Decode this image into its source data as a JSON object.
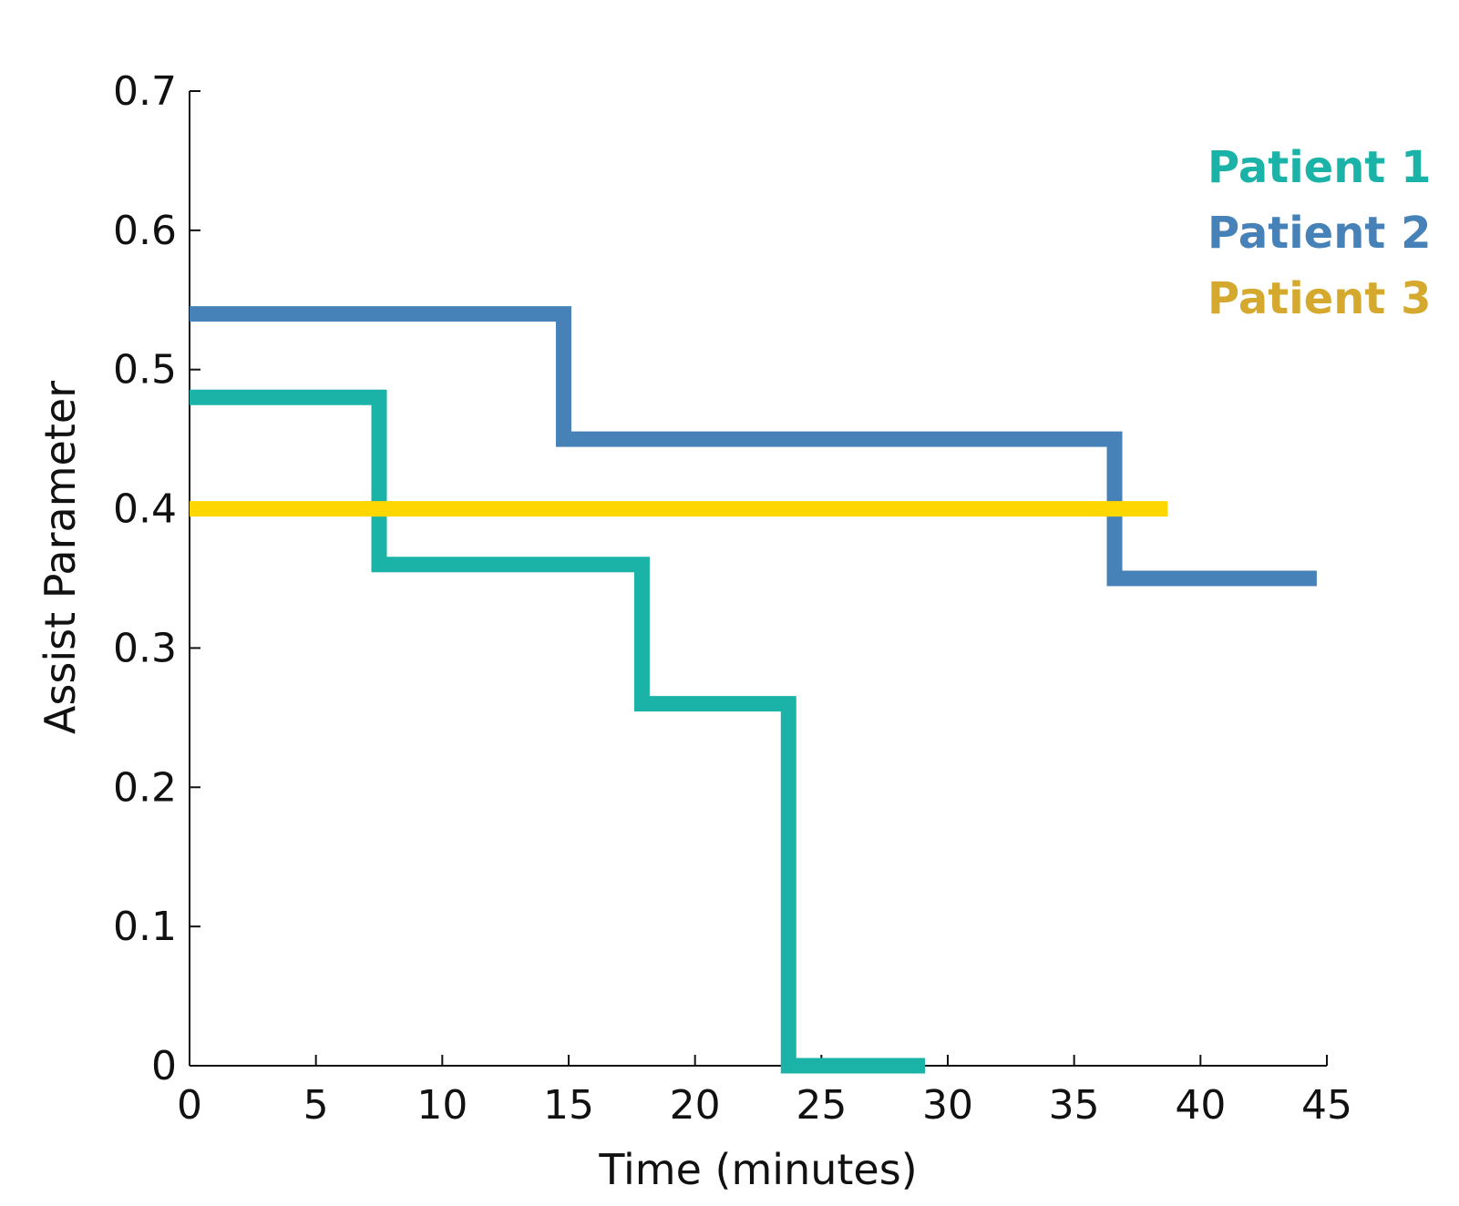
{
  "chart_data": {
    "type": "line",
    "step": true,
    "xlabel": "Time (minutes)",
    "ylabel": "Assist Parameter",
    "xlim": [
      0,
      45
    ],
    "ylim": [
      0,
      0.7
    ],
    "xticks": [
      0,
      5,
      10,
      15,
      20,
      25,
      30,
      35,
      40,
      45
    ],
    "yticks": [
      0,
      0.1,
      0.2,
      0.3,
      0.4,
      0.5,
      0.6,
      0.7
    ],
    "xtick_labels": [
      "0",
      "5",
      "10",
      "15",
      "20",
      "25",
      "30",
      "35",
      "40",
      "45"
    ],
    "ytick_labels": [
      "0",
      "0.1",
      "0.2",
      "0.3",
      "0.4",
      "0.5",
      "0.6",
      "0.7"
    ],
    "grid": false,
    "legend_position": "top-right",
    "series": [
      {
        "name": "Patient 1",
        "color": "#1BB3A8",
        "x": [
          0,
          7.5,
          7.5,
          17.9,
          17.9,
          23.7,
          23.7,
          29.1
        ],
        "y": [
          0.48,
          0.48,
          0.36,
          0.36,
          0.26,
          0.26,
          0.0,
          0.0
        ]
      },
      {
        "name": "Patient 2",
        "color": "#4682B7",
        "x": [
          0,
          14.8,
          14.8,
          36.6,
          36.6,
          44.6
        ],
        "y": [
          0.54,
          0.54,
          0.45,
          0.45,
          0.35,
          0.35
        ]
      },
      {
        "name": "Patient 3",
        "color": "#FFD700",
        "legend_color": "#D4A92E",
        "x": [
          0,
          38.7
        ],
        "y": [
          0.4,
          0.4
        ]
      }
    ]
  }
}
